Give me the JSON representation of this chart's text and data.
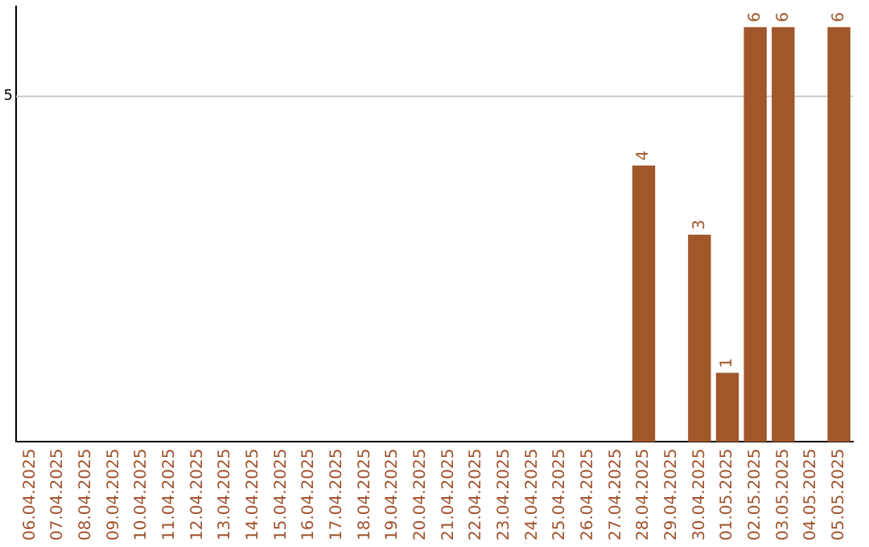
{
  "chart_data": {
    "type": "bar",
    "categories": [
      "06.04.2025",
      "07.04.2025",
      "08.04.2025",
      "09.04.2025",
      "10.04.2025",
      "11.04.2025",
      "12.04.2025",
      "13.04.2025",
      "14.04.2025",
      "15.04.2025",
      "16.04.2025",
      "17.04.2025",
      "18.04.2025",
      "19.04.2025",
      "20.04.2025",
      "21.04.2025",
      "22.04.2025",
      "23.04.2025",
      "24.04.2025",
      "25.04.2025",
      "26.04.2025",
      "27.04.2025",
      "28.04.2025",
      "29.04.2025",
      "30.04.2025",
      "01.05.2025",
      "02.05.2025",
      "03.05.2025",
      "04.05.2025",
      "05.05.2025"
    ],
    "values": [
      null,
      null,
      null,
      null,
      null,
      null,
      null,
      null,
      null,
      null,
      null,
      null,
      null,
      null,
      null,
      null,
      null,
      null,
      null,
      null,
      null,
      null,
      4,
      null,
      3,
      1,
      6,
      6,
      null,
      6
    ],
    "data_labels": true,
    "color": "#a0582a",
    "ylim": [
      0,
      6.3
    ],
    "ref_lines": [
      {
        "axis": "y",
        "value": 5,
        "label": "5",
        "color": "#c8c8c8"
      }
    ],
    "legend": false
  }
}
